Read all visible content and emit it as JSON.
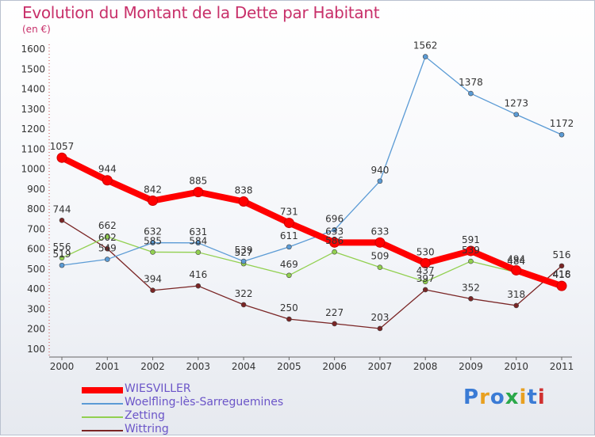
{
  "title": "Evolution du Montant de la Dette par Habitant",
  "unit": "(en €)",
  "logo": {
    "text": "Proxiti",
    "colors": [
      "#3a7bd5",
      "#e8a020",
      "#3a7bd5",
      "#2aa84a",
      "#e8a020",
      "#3a7bd5",
      "#d03030"
    ]
  },
  "chart_data": {
    "type": "line",
    "title": "Evolution du Montant de la Dette par Habitant",
    "ylabel": "(en €)",
    "xlabel": "",
    "ylim": [
      100,
      1600
    ],
    "yticks": [
      100,
      200,
      300,
      400,
      500,
      600,
      700,
      800,
      900,
      1000,
      1100,
      1200,
      1300,
      1400,
      1500,
      1600
    ],
    "categories": [
      "2000",
      "2001",
      "2002",
      "2003",
      "2004",
      "2005",
      "2006",
      "2007",
      "2008",
      "2009",
      "2010",
      "2011"
    ],
    "grid": false,
    "legend": "bottom-left",
    "series": [
      {
        "name": "WIESVILLER",
        "color": "#ff0000",
        "values": [
          1057,
          944,
          842,
          885,
          838,
          731,
          633,
          633,
          530,
          591,
          494,
          416
        ]
      },
      {
        "name": "Woelfling-lès-Sarreguemines",
        "color": "#5b9bd5",
        "values": [
          519,
          549,
          632,
          631,
          539,
          611,
          696,
          940,
          1562,
          1378,
          1273,
          1172
        ]
      },
      {
        "name": "Zetting",
        "color": "#92d050",
        "values": [
          556,
          662,
          585,
          584,
          527,
          469,
          586,
          509,
          437,
          539,
          484,
          418
        ]
      },
      {
        "name": "Wittring",
        "color": "#7a2525",
        "values": [
          744,
          602,
          394,
          416,
          322,
          250,
          227,
          203,
          397,
          352,
          318,
          516
        ]
      }
    ]
  }
}
